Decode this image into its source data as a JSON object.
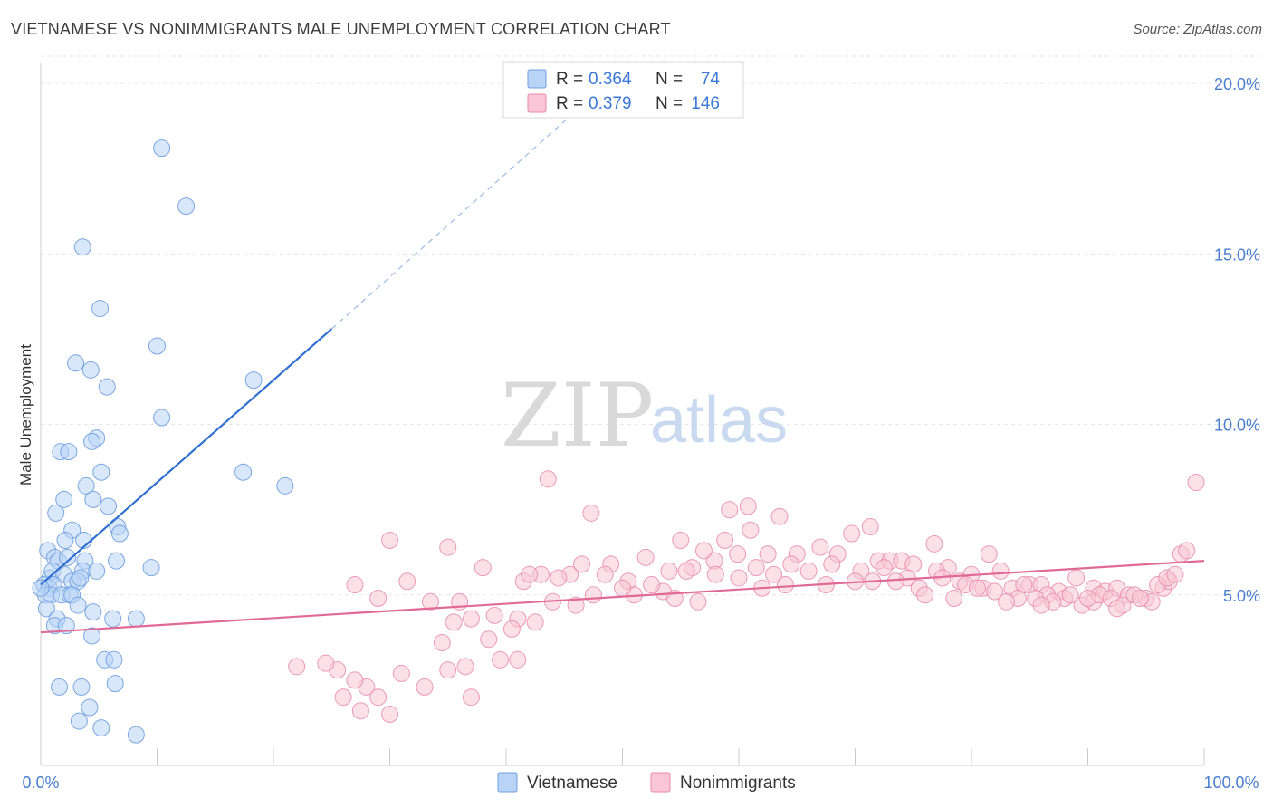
{
  "header": {
    "title": "VIETNAMESE VS NONIMMIGRANTS MALE UNEMPLOYMENT CORRELATION CHART",
    "source": "Source: ZipAtlas.com"
  },
  "watermark": {
    "zip": "ZIP",
    "atlas": "atlas"
  },
  "legend_top": {
    "rows": [
      {
        "r_label": "R =",
        "r_value": "0.364",
        "n_label": "N =",
        "n_value": "74"
      },
      {
        "r_label": "R =",
        "r_value": "0.379",
        "n_label": "N =",
        "n_value": "146"
      }
    ]
  },
  "colors": {
    "vietnamese_fill": "#b8d3f5",
    "vietnamese_stroke": "#6e9fe0",
    "vietnamese_line": "#2f6fd1",
    "nonimm_fill": "#f8c6d6",
    "nonimm_stroke": "#e98aab",
    "nonimm_line": "#e06a96",
    "tick": "#4a7fcf"
  },
  "chart_data": {
    "type": "scatter",
    "title": "VIETNAMESE VS NONIMMIGRANTS MALE UNEMPLOYMENT CORRELATION CHART",
    "xlabel": "",
    "ylabel": "Male Unemployment",
    "xlim": [
      0,
      100
    ],
    "ylim": [
      0,
      20.8
    ],
    "x_tick_labels": [
      "0.0%",
      "100.0%"
    ],
    "y_ticks": [
      5,
      10,
      15,
      20
    ],
    "y_tick_labels": [
      "5.0%",
      "10.0%",
      "15.0%",
      "20.0%"
    ],
    "grid": true,
    "legend": [
      "Vietnamese",
      "Nonimmigrants"
    ],
    "series": [
      {
        "name": "Vietnamese",
        "r": 0.364,
        "n": 74,
        "trend": {
          "x0": 0,
          "y0": 5.3,
          "x1": 25,
          "y1": 12.8,
          "dashed_to_x": 48,
          "dashed_to_y": 19.8
        },
        "points": [
          [
            10.4,
            18.1
          ],
          [
            12.5,
            16.4
          ],
          [
            3.6,
            15.2
          ],
          [
            5.1,
            13.4
          ],
          [
            10.0,
            12.3
          ],
          [
            3.0,
            11.8
          ],
          [
            4.3,
            11.6
          ],
          [
            18.3,
            11.3
          ],
          [
            5.7,
            11.1
          ],
          [
            10.4,
            10.2
          ],
          [
            1.7,
            9.2
          ],
          [
            2.4,
            9.2
          ],
          [
            4.8,
            9.6
          ],
          [
            4.4,
            9.5
          ],
          [
            5.2,
            8.6
          ],
          [
            17.4,
            8.6
          ],
          [
            3.9,
            8.2
          ],
          [
            21.0,
            8.2
          ],
          [
            1.3,
            7.4
          ],
          [
            2.0,
            7.8
          ],
          [
            4.5,
            7.8
          ],
          [
            5.8,
            7.6
          ],
          [
            6.6,
            7.0
          ],
          [
            2.7,
            6.9
          ],
          [
            6.8,
            6.8
          ],
          [
            2.1,
            6.6
          ],
          [
            3.7,
            6.6
          ],
          [
            0.6,
            6.3
          ],
          [
            1.2,
            6.1
          ],
          [
            1.5,
            6.0
          ],
          [
            2.3,
            6.1
          ],
          [
            3.8,
            6.0
          ],
          [
            6.5,
            6.0
          ],
          [
            0.8,
            5.5
          ],
          [
            1.0,
            5.7
          ],
          [
            2.0,
            5.6
          ],
          [
            3.6,
            5.7
          ],
          [
            4.8,
            5.7
          ],
          [
            9.5,
            5.8
          ],
          [
            0.3,
            5.3
          ],
          [
            0.7,
            5.2
          ],
          [
            1.1,
            5.3
          ],
          [
            2.7,
            5.4
          ],
          [
            3.2,
            5.4
          ],
          [
            3.4,
            5.5
          ],
          [
            0.4,
            5.0
          ],
          [
            0.9,
            5.0
          ],
          [
            1.8,
            5.0
          ],
          [
            2.5,
            5.0
          ],
          [
            2.7,
            5.0
          ],
          [
            0.5,
            4.6
          ],
          [
            3.2,
            4.7
          ],
          [
            4.5,
            4.5
          ],
          [
            1.4,
            4.3
          ],
          [
            1.2,
            4.1
          ],
          [
            2.2,
            4.1
          ],
          [
            6.2,
            4.3
          ],
          [
            8.2,
            4.3
          ],
          [
            4.4,
            3.8
          ],
          [
            5.5,
            3.1
          ],
          [
            6.3,
            3.1
          ],
          [
            1.6,
            2.3
          ],
          [
            3.5,
            2.3
          ],
          [
            6.4,
            2.4
          ],
          [
            4.2,
            1.7
          ],
          [
            3.3,
            1.3
          ],
          [
            5.2,
            1.1
          ],
          [
            8.2,
            0.9
          ],
          [
            0.0,
            5.2
          ]
        ]
      },
      {
        "name": "Nonimmigrants",
        "r": 0.379,
        "n": 146,
        "trend": {
          "x0": 0,
          "y0": 3.9,
          "x1": 100,
          "y1": 6.0
        },
        "points": [
          [
            43.6,
            8.4
          ],
          [
            60.8,
            7.6
          ],
          [
            59.2,
            7.5
          ],
          [
            47.3,
            7.4
          ],
          [
            63.5,
            7.3
          ],
          [
            71.3,
            7.0
          ],
          [
            61.0,
            6.9
          ],
          [
            30.0,
            6.6
          ],
          [
            58.8,
            6.6
          ],
          [
            69.7,
            6.8
          ],
          [
            76.8,
            6.5
          ],
          [
            35.0,
            6.4
          ],
          [
            62.5,
            6.2
          ],
          [
            65.0,
            6.2
          ],
          [
            67.0,
            6.4
          ],
          [
            68.5,
            6.2
          ],
          [
            72.0,
            6.0
          ],
          [
            73.0,
            6.0
          ],
          [
            74.0,
            6.0
          ],
          [
            75.0,
            5.9
          ],
          [
            78.0,
            5.8
          ],
          [
            80.0,
            5.6
          ],
          [
            81.5,
            6.2
          ],
          [
            82.5,
            5.7
          ],
          [
            59.9,
            6.2
          ],
          [
            57.9,
            6.0
          ],
          [
            52.0,
            6.1
          ],
          [
            49.0,
            5.9
          ],
          [
            38.0,
            5.8
          ],
          [
            41.5,
            5.4
          ],
          [
            43.0,
            5.6
          ],
          [
            45.5,
            5.6
          ],
          [
            48.5,
            5.6
          ],
          [
            50.5,
            5.4
          ],
          [
            54.0,
            5.7
          ],
          [
            56.0,
            5.8
          ],
          [
            58.0,
            5.6
          ],
          [
            61.5,
            5.8
          ],
          [
            63.0,
            5.6
          ],
          [
            64.5,
            5.9
          ],
          [
            66.0,
            5.7
          ],
          [
            70.5,
            5.7
          ],
          [
            72.5,
            5.8
          ],
          [
            74.5,
            5.5
          ],
          [
            77.0,
            5.7
          ],
          [
            79.0,
            5.4
          ],
          [
            83.5,
            5.2
          ],
          [
            85.0,
            5.3
          ],
          [
            86.0,
            5.3
          ],
          [
            87.5,
            5.1
          ],
          [
            89.0,
            5.5
          ],
          [
            90.5,
            5.2
          ],
          [
            91.5,
            5.1
          ],
          [
            92.5,
            5.2
          ],
          [
            93.5,
            5.0
          ],
          [
            95.0,
            4.9
          ],
          [
            96.5,
            5.2
          ],
          [
            97.0,
            5.4
          ],
          [
            98.0,
            6.2
          ],
          [
            98.5,
            6.3
          ],
          [
            99.3,
            8.3
          ],
          [
            84.5,
            5.3
          ],
          [
            86.5,
            5.0
          ],
          [
            88.0,
            4.9
          ],
          [
            89.5,
            4.7
          ],
          [
            90.5,
            4.8
          ],
          [
            91.0,
            5.0
          ],
          [
            92.0,
            4.9
          ],
          [
            93.0,
            4.7
          ],
          [
            94.0,
            5.0
          ],
          [
            95.5,
            4.8
          ],
          [
            96.0,
            5.3
          ],
          [
            96.8,
            5.5
          ],
          [
            97.5,
            5.6
          ],
          [
            55.5,
            5.7
          ],
          [
            53.5,
            5.1
          ],
          [
            52.5,
            5.3
          ],
          [
            51.0,
            5.0
          ],
          [
            47.5,
            5.0
          ],
          [
            46.0,
            4.7
          ],
          [
            44.0,
            4.8
          ],
          [
            42.5,
            4.2
          ],
          [
            41.0,
            4.3
          ],
          [
            37.0,
            4.3
          ],
          [
            36.0,
            4.8
          ],
          [
            33.5,
            4.8
          ],
          [
            27.0,
            5.3
          ],
          [
            29.0,
            4.9
          ],
          [
            31.5,
            5.4
          ],
          [
            40.5,
            4.0
          ],
          [
            39.0,
            4.4
          ],
          [
            35.5,
            4.2
          ],
          [
            34.5,
            3.6
          ],
          [
            38.5,
            3.7
          ],
          [
            39.5,
            3.1
          ],
          [
            41.0,
            3.1
          ],
          [
            36.5,
            2.9
          ],
          [
            35.0,
            2.8
          ],
          [
            37.0,
            2.0
          ],
          [
            28.0,
            2.3
          ],
          [
            27.0,
            2.5
          ],
          [
            29.0,
            2.0
          ],
          [
            25.5,
            2.8
          ],
          [
            24.5,
            3.0
          ],
          [
            22.0,
            2.9
          ],
          [
            26.0,
            2.0
          ],
          [
            27.5,
            1.6
          ],
          [
            30.0,
            1.5
          ],
          [
            31.0,
            2.7
          ],
          [
            33.0,
            2.3
          ],
          [
            57.0,
            6.3
          ],
          [
            55.0,
            6.6
          ],
          [
            64.0,
            5.3
          ],
          [
            67.5,
            5.3
          ],
          [
            70.0,
            5.4
          ],
          [
            73.5,
            5.4
          ],
          [
            75.5,
            5.2
          ],
          [
            77.5,
            5.5
          ],
          [
            79.5,
            5.3
          ],
          [
            81.0,
            5.2
          ],
          [
            82.0,
            5.1
          ],
          [
            84.0,
            4.9
          ],
          [
            85.5,
            4.9
          ],
          [
            87.0,
            4.8
          ],
          [
            88.5,
            5.0
          ],
          [
            90.0,
            4.9
          ],
          [
            92.5,
            4.6
          ],
          [
            94.5,
            4.9
          ],
          [
            60.0,
            5.5
          ],
          [
            62.0,
            5.2
          ],
          [
            68.0,
            5.9
          ],
          [
            71.5,
            5.4
          ],
          [
            76.0,
            5.0
          ],
          [
            78.5,
            4.9
          ],
          [
            80.5,
            5.2
          ],
          [
            83.0,
            4.8
          ],
          [
            86.0,
            4.7
          ],
          [
            42.0,
            5.6
          ],
          [
            44.5,
            5.5
          ],
          [
            46.5,
            5.9
          ],
          [
            50.0,
            5.2
          ],
          [
            54.5,
            4.9
          ],
          [
            56.5,
            4.8
          ]
        ]
      }
    ]
  },
  "legend_bottom": {
    "items": [
      "Vietnamese",
      "Nonimmigrants"
    ]
  }
}
